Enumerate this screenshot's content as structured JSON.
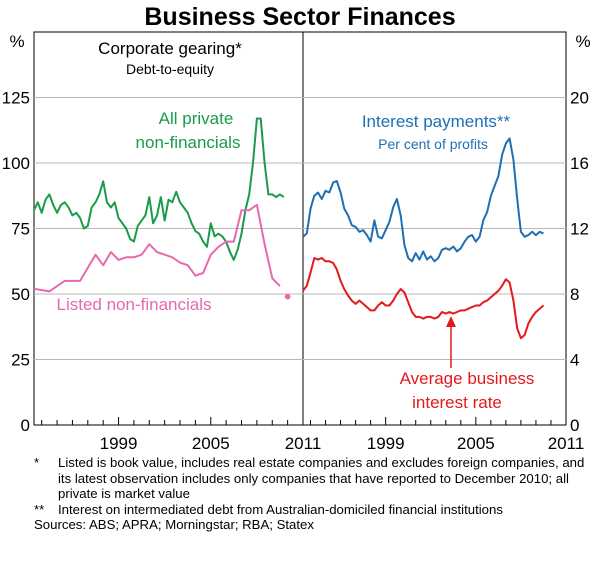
{
  "title": "Business Sector Finances",
  "footnotes": [
    {
      "mark": "*",
      "text": "Listed is book value, includes real estate companies and excludes foreign companies, and its latest observation includes only companies that have reported to December 2010; all private is market value"
    },
    {
      "mark": "**",
      "text": "Interest on intermediated debt from Australian-domiciled financial institutions"
    }
  ],
  "sources": "Sources: ABS; APRA; Morningstar; RBA; Statex",
  "colors": {
    "green": "#1a9b4b",
    "pink": "#e868ad",
    "blue": "#1f6fb5",
    "red": "#e31a1c"
  },
  "chart_data": [
    {
      "type": "line",
      "panel": "left",
      "title": "Corporate gearing*",
      "subtitle": "Debt-to-equity",
      "unit_label": "%",
      "ylim": [
        0,
        150
      ],
      "yticks": [
        0,
        25,
        50,
        75,
        100,
        125
      ],
      "xlim": [
        1993.5,
        2011
      ],
      "xticks": [
        "1999",
        "2005",
        "2011"
      ],
      "xtick_values": [
        1999,
        2005,
        2011
      ],
      "series": [
        {
          "name": "All private non-financials",
          "label_lines": [
            "All private",
            "non-financials"
          ],
          "color": "#1a9b4b",
          "points": [
            [
              1993.5,
              82
            ],
            [
              1993.75,
              85
            ],
            [
              1994,
              81
            ],
            [
              1994.25,
              86
            ],
            [
              1994.5,
              88
            ],
            [
              1994.75,
              84
            ],
            [
              1995,
              81
            ],
            [
              1995.25,
              84
            ],
            [
              1995.5,
              85
            ],
            [
              1995.75,
              83
            ],
            [
              1996,
              80
            ],
            [
              1996.25,
              81
            ],
            [
              1996.5,
              79
            ],
            [
              1996.75,
              75
            ],
            [
              1997,
              76
            ],
            [
              1997.25,
              83
            ],
            [
              1997.5,
              85
            ],
            [
              1997.75,
              88
            ],
            [
              1998,
              93
            ],
            [
              1998.25,
              85
            ],
            [
              1998.5,
              83
            ],
            [
              1998.75,
              85
            ],
            [
              1999,
              79
            ],
            [
              1999.25,
              77
            ],
            [
              1999.5,
              75
            ],
            [
              1999.75,
              71
            ],
            [
              2000,
              70
            ],
            [
              2000.25,
              76
            ],
            [
              2000.5,
              78
            ],
            [
              2000.75,
              80
            ],
            [
              2001,
              87
            ],
            [
              2001.25,
              77
            ],
            [
              2001.5,
              80
            ],
            [
              2001.75,
              87
            ],
            [
              2002,
              78
            ],
            [
              2002.25,
              86
            ],
            [
              2002.5,
              85
            ],
            [
              2002.75,
              89
            ],
            [
              2003,
              85
            ],
            [
              2003.25,
              83
            ],
            [
              2003.5,
              81
            ],
            [
              2003.75,
              77
            ],
            [
              2004,
              74
            ],
            [
              2004.25,
              73
            ],
            [
              2004.5,
              70
            ],
            [
              2004.75,
              68
            ],
            [
              2005,
              77
            ],
            [
              2005.25,
              72
            ],
            [
              2005.5,
              73
            ],
            [
              2005.75,
              72
            ],
            [
              2006,
              70
            ],
            [
              2006.25,
              66
            ],
            [
              2006.5,
              63
            ],
            [
              2006.75,
              67
            ],
            [
              2007,
              73
            ],
            [
              2007.25,
              82
            ],
            [
              2007.5,
              88
            ],
            [
              2007.75,
              100
            ],
            [
              2008,
              117
            ],
            [
              2008.25,
              117
            ],
            [
              2008.5,
              100
            ],
            [
              2008.75,
              88
            ],
            [
              2009,
              88
            ],
            [
              2009.25,
              87
            ],
            [
              2009.5,
              88
            ],
            [
              2009.75,
              87
            ]
          ]
        },
        {
          "name": "Listed non-financials",
          "label_lines": [
            "Listed non-financials"
          ],
          "color": "#e868ad",
          "end_marker": [
            2010,
            49
          ],
          "points": [
            [
              1993.5,
              52
            ],
            [
              1994.5,
              51
            ],
            [
              1995,
              53
            ],
            [
              1995.5,
              55
            ],
            [
              1996.5,
              55
            ],
            [
              1997,
              60
            ],
            [
              1997.5,
              65
            ],
            [
              1998,
              61
            ],
            [
              1998.5,
              66
            ],
            [
              1999,
              63
            ],
            [
              1999.5,
              64
            ],
            [
              2000,
              64
            ],
            [
              2000.5,
              65
            ],
            [
              2001,
              69
            ],
            [
              2001.5,
              66
            ],
            [
              2002,
              65
            ],
            [
              2002.5,
              64
            ],
            [
              2003,
              62
            ],
            [
              2003.5,
              61
            ],
            [
              2004,
              57
            ],
            [
              2004.5,
              58
            ],
            [
              2005,
              65
            ],
            [
              2005.5,
              68
            ],
            [
              2006,
              70
            ],
            [
              2006.5,
              70
            ],
            [
              2007,
              82
            ],
            [
              2007.5,
              82
            ],
            [
              2008,
              84
            ],
            [
              2008.5,
              69
            ],
            [
              2009,
              56
            ],
            [
              2009.5,
              53
            ]
          ]
        }
      ]
    },
    {
      "type": "line",
      "panel": "right",
      "unit_label": "%",
      "ylim": [
        0,
        24
      ],
      "yticks": [
        0,
        4,
        8,
        12,
        16,
        20
      ],
      "xlim": [
        1993.5,
        2011
      ],
      "xticks": [
        "1999",
        "2005",
        "2011"
      ],
      "xtick_values": [
        1999,
        2005,
        2011
      ],
      "series": [
        {
          "name": "Interest payments**",
          "label_lines": [
            "Interest payments**",
            "Per cent of profits"
          ],
          "color": "#1f6fb5",
          "points": [
            [
              1993.5,
              11.5
            ],
            [
              1993.75,
              11.7
            ],
            [
              1994,
              13.2
            ],
            [
              1994.25,
              14
            ],
            [
              1994.5,
              14.2
            ],
            [
              1994.75,
              13.8
            ],
            [
              1995,
              14.3
            ],
            [
              1995.25,
              14.2
            ],
            [
              1995.5,
              14.8
            ],
            [
              1995.75,
              14.9
            ],
            [
              1996,
              14.2
            ],
            [
              1996.25,
              13.2
            ],
            [
              1996.5,
              12.8
            ],
            [
              1996.75,
              12.2
            ],
            [
              1997,
              12.1
            ],
            [
              1997.25,
              11.8
            ],
            [
              1997.5,
              11.9
            ],
            [
              1997.75,
              11.6
            ],
            [
              1998,
              11.2
            ],
            [
              1998.25,
              12.5
            ],
            [
              1998.5,
              11.5
            ],
            [
              1998.75,
              11.4
            ],
            [
              1999,
              11.9
            ],
            [
              1999.25,
              12.4
            ],
            [
              1999.5,
              13.3
            ],
            [
              1999.75,
              13.8
            ],
            [
              2000,
              12.8
            ],
            [
              2000.25,
              11
            ],
            [
              2000.5,
              10.2
            ],
            [
              2000.75,
              10
            ],
            [
              2001,
              10.5
            ],
            [
              2001.25,
              10.1
            ],
            [
              2001.5,
              10.6
            ],
            [
              2001.75,
              10.1
            ],
            [
              2002,
              10.3
            ],
            [
              2002.25,
              10
            ],
            [
              2002.5,
              10.2
            ],
            [
              2002.75,
              10.7
            ],
            [
              2003,
              10.8
            ],
            [
              2003.25,
              10.7
            ],
            [
              2003.5,
              10.9
            ],
            [
              2003.75,
              10.6
            ],
            [
              2004,
              10.8
            ],
            [
              2004.25,
              11.2
            ],
            [
              2004.5,
              11.5
            ],
            [
              2004.75,
              11.6
            ],
            [
              2005,
              11.2
            ],
            [
              2005.25,
              11.5
            ],
            [
              2005.5,
              12.5
            ],
            [
              2005.75,
              13
            ],
            [
              2006,
              14
            ],
            [
              2006.25,
              14.6
            ],
            [
              2006.5,
              15.2
            ],
            [
              2006.75,
              16.5
            ],
            [
              2007,
              17.2
            ],
            [
              2007.25,
              17.5
            ],
            [
              2007.5,
              16.2
            ],
            [
              2007.75,
              13.8
            ],
            [
              2008,
              11.8
            ],
            [
              2008.25,
              11.5
            ],
            [
              2008.5,
              11.6
            ],
            [
              2008.75,
              11.8
            ],
            [
              2009,
              11.6
            ],
            [
              2009.25,
              11.8
            ],
            [
              2009.5,
              11.7
            ]
          ]
        },
        {
          "name": "Average business interest rate",
          "label_lines": [
            "Average business",
            "interest rate"
          ],
          "color": "#e31a1c",
          "points": [
            [
              1993.5,
              8.2
            ],
            [
              1993.75,
              8.5
            ],
            [
              1994,
              9.3
            ],
            [
              1994.25,
              10.2
            ],
            [
              1994.5,
              10.1
            ],
            [
              1994.75,
              10.2
            ],
            [
              1995,
              10
            ],
            [
              1995.25,
              10
            ],
            [
              1995.5,
              9.9
            ],
            [
              1995.75,
              9.5
            ],
            [
              1996,
              8.8
            ],
            [
              1996.25,
              8.3
            ],
            [
              1996.5,
              7.9
            ],
            [
              1996.75,
              7.6
            ],
            [
              1997,
              7.4
            ],
            [
              1997.25,
              7.6
            ],
            [
              1997.5,
              7.4
            ],
            [
              1997.75,
              7.2
            ],
            [
              1998,
              7
            ],
            [
              1998.25,
              7
            ],
            [
              1998.5,
              7.3
            ],
            [
              1998.75,
              7.5
            ],
            [
              1999,
              7.3
            ],
            [
              1999.25,
              7.3
            ],
            [
              1999.5,
              7.6
            ],
            [
              1999.75,
              8
            ],
            [
              2000,
              8.3
            ],
            [
              2000.25,
              8.1
            ],
            [
              2000.5,
              7.5
            ],
            [
              2000.75,
              6.9
            ],
            [
              2001,
              6.6
            ],
            [
              2001.25,
              6.6
            ],
            [
              2001.5,
              6.5
            ],
            [
              2001.75,
              6.6
            ],
            [
              2002,
              6.6
            ],
            [
              2002.25,
              6.5
            ],
            [
              2002.5,
              6.6
            ],
            [
              2002.75,
              6.9
            ],
            [
              2003,
              6.8
            ],
            [
              2003.25,
              6.9
            ],
            [
              2003.5,
              6.8
            ],
            [
              2003.75,
              6.9
            ],
            [
              2004,
              7
            ],
            [
              2004.25,
              7
            ],
            [
              2004.5,
              7.1
            ],
            [
              2004.75,
              7.2
            ],
            [
              2005,
              7.3
            ],
            [
              2005.25,
              7.3
            ],
            [
              2005.5,
              7.5
            ],
            [
              2005.75,
              7.6
            ],
            [
              2006,
              7.8
            ],
            [
              2006.25,
              8
            ],
            [
              2006.5,
              8.2
            ],
            [
              2006.75,
              8.5
            ],
            [
              2007,
              8.9
            ],
            [
              2007.25,
              8.7
            ],
            [
              2007.5,
              7.6
            ],
            [
              2007.75,
              5.9
            ],
            [
              2008,
              5.3
            ],
            [
              2008.25,
              5.5
            ],
            [
              2008.5,
              6.2
            ],
            [
              2008.75,
              6.6
            ],
            [
              2009,
              6.9
            ],
            [
              2009.25,
              7.1
            ],
            [
              2009.5,
              7.3
            ]
          ]
        }
      ]
    }
  ]
}
